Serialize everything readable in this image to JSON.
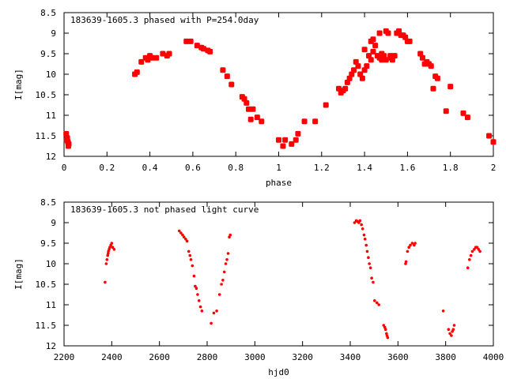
{
  "chart_data": [
    {
      "type": "scatter",
      "title": "183639-1605.3 phased with P=254.0day",
      "xlabel": "phase",
      "ylabel": "I[mag]",
      "xlim": [
        0,
        2
      ],
      "ylim": [
        8.5,
        12
      ],
      "y_inverted": true,
      "grid": false,
      "x_ticks": [
        0,
        0.2,
        0.4,
        0.6,
        0.8,
        1,
        1.2,
        1.4,
        1.6,
        1.8,
        2
      ],
      "x_tick_labels": [
        "0",
        "0.2",
        "0.4",
        "0.6",
        "0.8",
        "1",
        "1.2",
        "1.4",
        "1.6",
        "1.8",
        "2"
      ],
      "y_ticks": [
        8.5,
        9,
        9.5,
        10,
        10.5,
        11,
        11.5,
        12
      ],
      "y_tick_labels": [
        "8.5",
        "9",
        "9.5",
        "10",
        "10.5",
        "11",
        "11.5",
        "12"
      ],
      "marker": "star",
      "color": "#ff0000",
      "points": [
        [
          0.01,
          11.45
        ],
        [
          0.015,
          11.55
        ],
        [
          0.018,
          11.65
        ],
        [
          0.02,
          11.75
        ],
        [
          0.022,
          11.7
        ],
        [
          0.012,
          11.6
        ],
        [
          0.33,
          10.0
        ],
        [
          0.34,
          9.95
        ],
        [
          0.36,
          9.7
        ],
        [
          0.38,
          9.6
        ],
        [
          0.39,
          9.65
        ],
        [
          0.4,
          9.55
        ],
        [
          0.41,
          9.6
        ],
        [
          0.43,
          9.6
        ],
        [
          0.46,
          9.5
        ],
        [
          0.48,
          9.55
        ],
        [
          0.49,
          9.5
        ],
        [
          0.57,
          9.2
        ],
        [
          0.59,
          9.2
        ],
        [
          0.62,
          9.3
        ],
        [
          0.64,
          9.35
        ],
        [
          0.65,
          9.38
        ],
        [
          0.67,
          9.42
        ],
        [
          0.68,
          9.45
        ],
        [
          0.74,
          9.9
        ],
        [
          0.76,
          10.05
        ],
        [
          0.78,
          10.25
        ],
        [
          0.83,
          10.55
        ],
        [
          0.84,
          10.6
        ],
        [
          0.85,
          10.7
        ],
        [
          0.86,
          10.85
        ],
        [
          0.87,
          11.1
        ],
        [
          0.88,
          10.85
        ],
        [
          0.9,
          11.05
        ],
        [
          0.92,
          11.15
        ],
        [
          1.0,
          11.6
        ],
        [
          1.02,
          11.75
        ],
        [
          1.03,
          11.6
        ],
        [
          1.06,
          11.7
        ],
        [
          1.08,
          11.6
        ],
        [
          1.09,
          11.45
        ],
        [
          1.12,
          11.15
        ],
        [
          1.17,
          11.15
        ],
        [
          1.22,
          10.75
        ],
        [
          1.28,
          10.35
        ],
        [
          1.29,
          10.45
        ],
        [
          1.3,
          10.4
        ],
        [
          1.31,
          10.35
        ],
        [
          1.32,
          10.2
        ],
        [
          1.33,
          10.1
        ],
        [
          1.34,
          10.0
        ],
        [
          1.35,
          9.9
        ],
        [
          1.36,
          9.7
        ],
        [
          1.37,
          9.8
        ],
        [
          1.38,
          10.0
        ],
        [
          1.39,
          10.1
        ],
        [
          1.4,
          9.9
        ],
        [
          1.41,
          9.8
        ],
        [
          1.42,
          9.55
        ],
        [
          1.43,
          9.65
        ],
        [
          1.44,
          9.45
        ],
        [
          1.45,
          9.3
        ],
        [
          1.46,
          9.55
        ],
        [
          1.47,
          9.6
        ],
        [
          1.48,
          9.65
        ],
        [
          1.49,
          9.55
        ],
        [
          1.5,
          8.95
        ],
        [
          1.51,
          9.0
        ],
        [
          1.52,
          9.6
        ],
        [
          1.53,
          9.65
        ],
        [
          1.54,
          9.55
        ],
        [
          1.55,
          9.0
        ],
        [
          1.56,
          8.95
        ],
        [
          1.57,
          9.05
        ],
        [
          1.58,
          9.05
        ],
        [
          1.59,
          9.1
        ],
        [
          1.6,
          9.2
        ],
        [
          1.61,
          9.2
        ],
        [
          1.4,
          9.4
        ],
        [
          1.43,
          9.2
        ],
        [
          1.44,
          9.15
        ],
        [
          1.47,
          9.0
        ],
        [
          1.48,
          9.5
        ],
        [
          1.5,
          9.65
        ],
        [
          1.52,
          9.55
        ],
        [
          1.66,
          9.5
        ],
        [
          1.67,
          9.6
        ],
        [
          1.68,
          9.75
        ],
        [
          1.69,
          9.7
        ],
        [
          1.7,
          9.75
        ],
        [
          1.71,
          9.8
        ],
        [
          1.73,
          10.05
        ],
        [
          1.74,
          10.1
        ],
        [
          1.72,
          10.35
        ],
        [
          1.78,
          10.9
        ],
        [
          1.8,
          10.3
        ],
        [
          1.86,
          10.95
        ],
        [
          1.88,
          11.05
        ],
        [
          1.98,
          11.5
        ],
        [
          2.0,
          11.65
        ]
      ]
    },
    {
      "type": "scatter",
      "title": "183639-1605.3 not phased light curve",
      "xlabel": "hjd0",
      "ylabel": "I[mag]",
      "xlim": [
        2200,
        4000
      ],
      "ylim": [
        8.5,
        12
      ],
      "y_inverted": true,
      "grid": false,
      "x_ticks": [
        2200,
        2400,
        2600,
        2800,
        3000,
        3200,
        3400,
        3600,
        3800,
        4000
      ],
      "x_tick_labels": [
        "2200",
        "2400",
        "2600",
        "2800",
        "3000",
        "3200",
        "3400",
        "3600",
        "3800",
        "4000"
      ],
      "y_ticks": [
        8.5,
        9,
        9.5,
        10,
        10.5,
        11,
        11.5,
        12
      ],
      "y_tick_labels": [
        "8.5",
        "9",
        "9.5",
        "10",
        "10.5",
        "11",
        "11.5",
        "12"
      ],
      "marker": "dot",
      "color": "#ff0000",
      "points": [
        [
          2372,
          10.45
        ],
        [
          2377,
          10.0
        ],
        [
          2380,
          9.9
        ],
        [
          2383,
          9.8
        ],
        [
          2386,
          9.7
        ],
        [
          2389,
          9.65
        ],
        [
          2392,
          9.6
        ],
        [
          2396,
          9.55
        ],
        [
          2400,
          9.5
        ],
        [
          2404,
          9.6
        ],
        [
          2410,
          9.65
        ],
        [
          2385,
          9.75
        ],
        [
          2683,
          9.2
        ],
        [
          2690,
          9.25
        ],
        [
          2697,
          9.3
        ],
        [
          2703,
          9.35
        ],
        [
          2710,
          9.4
        ],
        [
          2716,
          9.45
        ],
        [
          2723,
          9.7
        ],
        [
          2728,
          9.8
        ],
        [
          2732,
          9.9
        ],
        [
          2738,
          10.05
        ],
        [
          2745,
          10.3
        ],
        [
          2750,
          10.55
        ],
        [
          2755,
          10.6
        ],
        [
          2760,
          10.75
        ],
        [
          2766,
          10.9
        ],
        [
          2772,
          11.05
        ],
        [
          2778,
          11.15
        ],
        [
          2817,
          11.45
        ],
        [
          2828,
          11.2
        ],
        [
          2840,
          11.15
        ],
        [
          2852,
          10.75
        ],
        [
          2860,
          10.5
        ],
        [
          2866,
          10.4
        ],
        [
          2872,
          10.2
        ],
        [
          2878,
          10.0
        ],
        [
          2883,
          9.9
        ],
        [
          2888,
          9.75
        ],
        [
          2893,
          9.35
        ],
        [
          2897,
          9.3
        ],
        [
          3418,
          9.0
        ],
        [
          3425,
          8.95
        ],
        [
          3430,
          8.97
        ],
        [
          3436,
          9.0
        ],
        [
          3441,
          8.95
        ],
        [
          3447,
          9.05
        ],
        [
          3452,
          9.15
        ],
        [
          3458,
          9.3
        ],
        [
          3462,
          9.4
        ],
        [
          3467,
          9.55
        ],
        [
          3471,
          9.7
        ],
        [
          3476,
          9.85
        ],
        [
          3480,
          10.0
        ],
        [
          3485,
          10.1
        ],
        [
          3490,
          10.35
        ],
        [
          3496,
          10.45
        ],
        [
          3502,
          10.9
        ],
        [
          3512,
          10.95
        ],
        [
          3520,
          11.0
        ],
        [
          3540,
          11.5
        ],
        [
          3545,
          11.55
        ],
        [
          3548,
          11.6
        ],
        [
          3552,
          11.7
        ],
        [
          3554,
          11.75
        ],
        [
          3557,
          11.8
        ],
        [
          3632,
          10.0
        ],
        [
          3634,
          9.95
        ],
        [
          3640,
          9.7
        ],
        [
          3646,
          9.6
        ],
        [
          3652,
          9.55
        ],
        [
          3660,
          9.5
        ],
        [
          3668,
          9.55
        ],
        [
          3672,
          9.5
        ],
        [
          3790,
          11.15
        ],
        [
          3812,
          11.6
        ],
        [
          3818,
          11.7
        ],
        [
          3824,
          11.75
        ],
        [
          3828,
          11.65
        ],
        [
          3832,
          11.6
        ],
        [
          3836,
          11.5
        ],
        [
          3893,
          10.1
        ],
        [
          3900,
          9.9
        ],
        [
          3906,
          9.8
        ],
        [
          3912,
          9.7
        ],
        [
          3920,
          9.65
        ],
        [
          3926,
          9.6
        ],
        [
          3932,
          9.6
        ],
        [
          3938,
          9.65
        ],
        [
          3944,
          9.7
        ]
      ]
    }
  ]
}
